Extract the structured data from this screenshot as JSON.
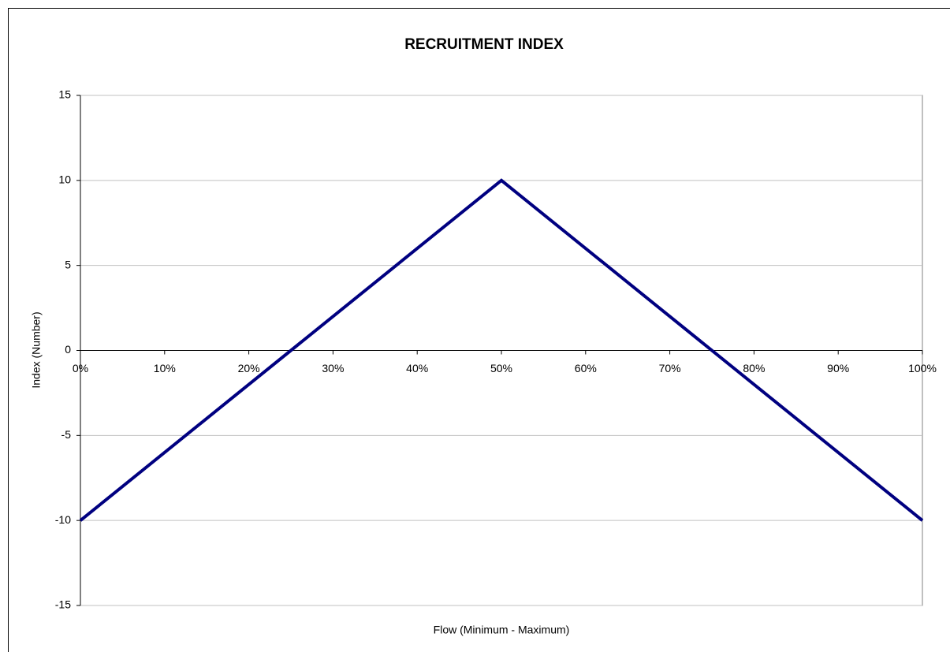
{
  "chart_data": {
    "type": "line",
    "title": "RECRUITMENT INDEX",
    "x_label": "Flow (Minimum - Maximum)",
    "y_label": "Index (Number)",
    "x": [
      0,
      50,
      100
    ],
    "series": [
      {
        "name": "Recruitment Index",
        "color": "#000080",
        "values": [
          -10,
          10,
          -10
        ]
      }
    ],
    "xlim": [
      0,
      100
    ],
    "xticks": [
      {
        "value": 0,
        "label": "0%"
      },
      {
        "value": 10,
        "label": "10%"
      },
      {
        "value": 20,
        "label": "20%"
      },
      {
        "value": 30,
        "label": "30%"
      },
      {
        "value": 40,
        "label": "40%"
      },
      {
        "value": 50,
        "label": "50%"
      },
      {
        "value": 60,
        "label": "60%"
      },
      {
        "value": 70,
        "label": "70%"
      },
      {
        "value": 80,
        "label": "80%"
      },
      {
        "value": 90,
        "label": "90%"
      },
      {
        "value": 100,
        "label": "100%"
      }
    ],
    "ylim": [
      -15,
      15
    ],
    "yticks": [
      -15,
      -10,
      -5,
      0,
      5,
      10,
      15
    ],
    "grid": true
  }
}
